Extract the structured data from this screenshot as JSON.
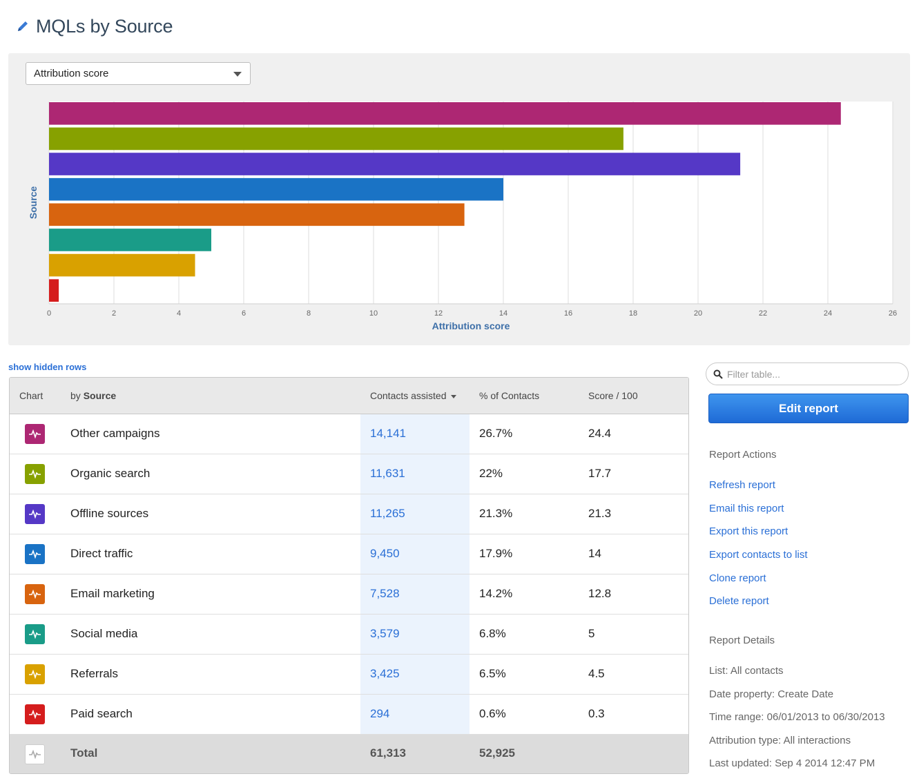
{
  "page": {
    "title": "MQLs by Source"
  },
  "chart_controls": {
    "metric_selected": "Attribution score"
  },
  "chart_data": {
    "type": "bar",
    "orientation": "horizontal",
    "ylabel": "Source",
    "xlabel": "Attribution score",
    "xlim": [
      0,
      26
    ],
    "xticks": [
      "0",
      "2",
      "4",
      "6",
      "8",
      "10",
      "12",
      "14",
      "16",
      "18",
      "20",
      "22",
      "24",
      "26"
    ],
    "grid": true,
    "categories": [
      "Other campaigns",
      "Organic search",
      "Offline sources",
      "Direct traffic",
      "Email marketing",
      "Social media",
      "Referrals",
      "Paid search"
    ],
    "values": [
      24.4,
      17.7,
      21.3,
      14,
      12.8,
      5,
      4.5,
      0.3
    ],
    "colors": [
      "#ad2773",
      "#87a100",
      "#5538c6",
      "#1a73c5",
      "#d8640f",
      "#1a9c88",
      "#d9a100",
      "#d51d1d"
    ]
  },
  "table": {
    "show_hidden_label": "show hidden rows",
    "headers": {
      "chart": "Chart",
      "by": "by",
      "source": "Source",
      "contacts": "Contacts assisted",
      "pct": "% of Contacts",
      "score": "Score / 100"
    },
    "rows": [
      {
        "name": "Other campaigns",
        "contacts": "14,141",
        "pct": "26.7%",
        "score": "24.4",
        "color": "#ad2773"
      },
      {
        "name": "Organic search",
        "contacts": "11,631",
        "pct": "22%",
        "score": "17.7",
        "color": "#87a100"
      },
      {
        "name": "Offline sources",
        "contacts": "11,265",
        "pct": "21.3%",
        "score": "21.3",
        "color": "#5538c6"
      },
      {
        "name": "Direct traffic",
        "contacts": "9,450",
        "pct": "17.9%",
        "score": "14",
        "color": "#1a73c5"
      },
      {
        "name": "Email marketing",
        "contacts": "7,528",
        "pct": "14.2%",
        "score": "12.8",
        "color": "#d8640f"
      },
      {
        "name": "Social media",
        "contacts": "3,579",
        "pct": "6.8%",
        "score": "5",
        "color": "#1a9c88"
      },
      {
        "name": "Referrals",
        "contacts": "3,425",
        "pct": "6.5%",
        "score": "4.5",
        "color": "#d9a100"
      },
      {
        "name": "Paid search",
        "contacts": "294",
        "pct": "0.6%",
        "score": "0.3",
        "color": "#d51d1d"
      }
    ],
    "total": {
      "label": "Total",
      "contacts": "61,313",
      "pct": "52,925"
    }
  },
  "sidebar": {
    "filter_placeholder": "Filter table...",
    "edit_button": "Edit report",
    "actions_heading": "Report Actions",
    "actions": [
      "Refresh report",
      "Email this report",
      "Export this report",
      "Export contacts to list",
      "Clone report",
      "Delete report"
    ],
    "details_heading": "Report Details",
    "details": [
      "List: All contacts",
      "Date property: Create Date",
      "Time range: 06/01/2013 to 06/30/2013",
      "Attribution type: All interactions",
      "Last updated: Sep 4 2014 12:47 PM"
    ]
  }
}
